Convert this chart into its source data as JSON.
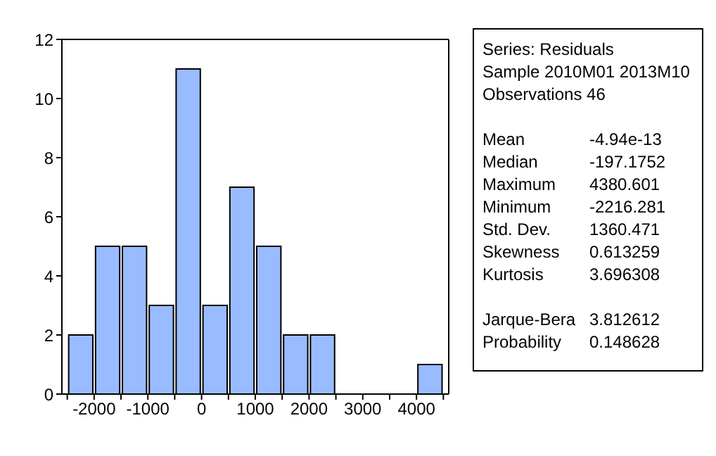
{
  "chart_data": {
    "type": "histogram",
    "bins": [
      -2500,
      -2000,
      -1500,
      -1000,
      -500,
      0,
      500,
      1000,
      1500,
      2000,
      2500,
      3000,
      3500,
      4000,
      4500
    ],
    "values": [
      2,
      5,
      5,
      3,
      11,
      3,
      7,
      5,
      2,
      2,
      0,
      0,
      0,
      1
    ],
    "color": "#99bbff",
    "xlim": [
      -2600,
      4600
    ],
    "xticks": [
      {
        "value": -2500,
        "label": null
      },
      -2000,
      {
        "value": -1500,
        "label": null
      },
      -1000,
      {
        "value": -500,
        "label": null
      },
      0,
      {
        "value": 500,
        "label": null
      },
      1000,
      {
        "value": 1500,
        "label": null
      },
      2000,
      {
        "value": 2500,
        "label": null
      },
      3000,
      {
        "value": 3500,
        "label": null
      },
      4000,
      {
        "value": 4500,
        "label": null
      }
    ],
    "ylim": [
      0,
      12
    ],
    "yticks": [
      0,
      2,
      4,
      6,
      8,
      10,
      12
    ],
    "grid": false,
    "legend": false,
    "annotations": [
      "Series: Residuals",
      "Sample 2010M01 2013M10",
      "Observations 46",
      "Mean\t-4.94e-13",
      "Median\t-197.1752",
      "Maximum\t4380.601",
      "Minimum\t-2216.281",
      "Std. Dev.\t1360.471",
      "Skewness\t0.613259",
      "Kurtosis\t3.696308",
      "Jarque-Bera\t3.812612",
      "Probability\t0.148628"
    ]
  }
}
